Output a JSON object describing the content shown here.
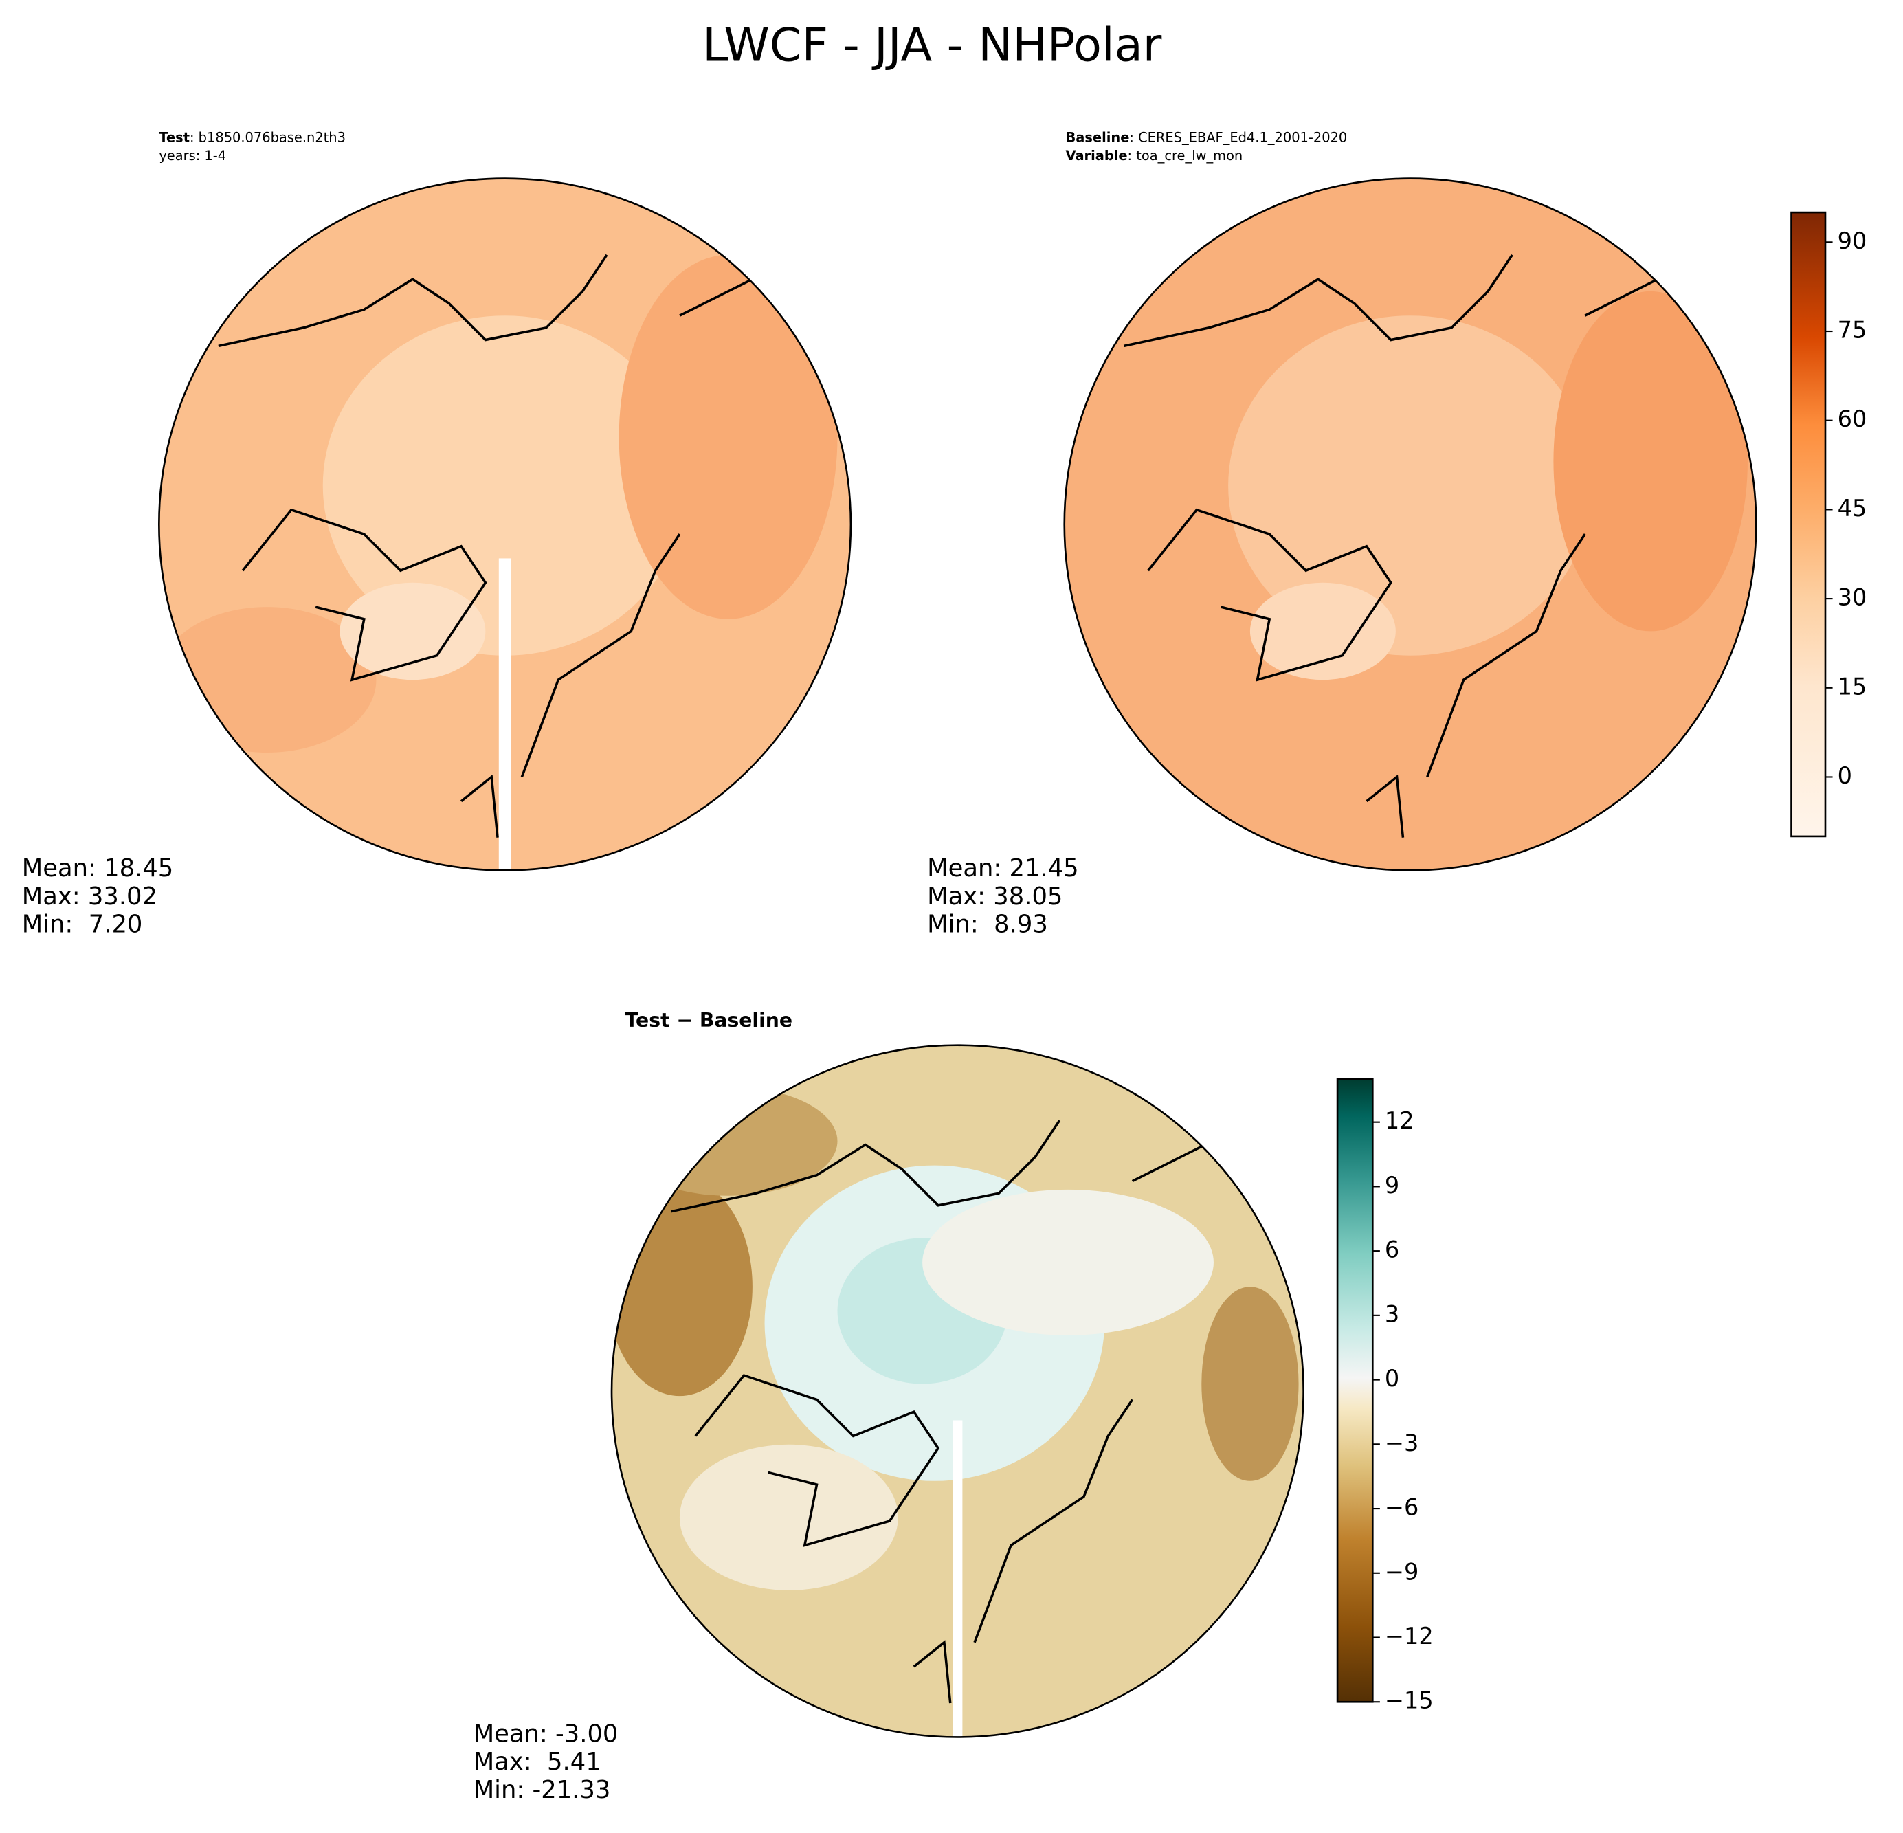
{
  "title": "LWCF - JJA - NHPolar",
  "chart_data": [
    {
      "type": "polar-map",
      "header": [
        {
          "key": "Test",
          "text": ": b1850.076base.n2th3"
        },
        {
          "text": "years: 1-4"
        }
      ],
      "stats": [
        "Mean: 18.45",
        "Max: 33.02",
        "Min:  7.20"
      ]
    },
    {
      "type": "polar-map",
      "header": [
        {
          "key": "Baseline",
          "text": ": CERES_EBAF_Ed4.1_2001-2020"
        },
        {
          "key": "Variable",
          "text": ": toa_cre_lw_mon"
        }
      ],
      "stats": [
        "Mean: 21.45",
        "Max: 38.05",
        "Min:  8.93"
      ],
      "colorbar": {
        "ylim": [
          -10,
          95
        ],
        "yticks": [
          0,
          15,
          30,
          45,
          60,
          75,
          90
        ]
      }
    },
    {
      "type": "polar-map",
      "title": "Test − Baseline",
      "stats": [
        "Mean: -3.00",
        "Max:  5.41",
        "Min: -21.33"
      ],
      "colorbar": {
        "ylim": [
          -15,
          14
        ],
        "yticks": [
          {
            "value": -15,
            "label": "−15"
          },
          {
            "value": -12,
            "label": "−12"
          },
          {
            "value": -9,
            "label": "−9"
          },
          {
            "value": -6,
            "label": "−6"
          },
          {
            "value": -3,
            "label": "−3"
          },
          0,
          3,
          6,
          9,
          12
        ]
      }
    }
  ]
}
